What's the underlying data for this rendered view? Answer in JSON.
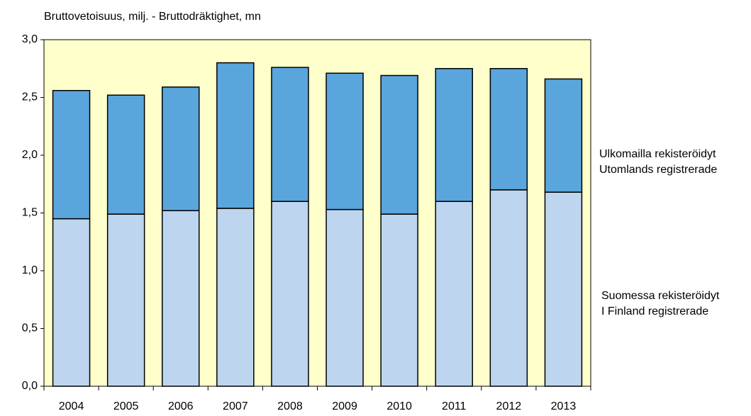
{
  "chart_data": {
    "type": "stacked_bar",
    "title": "Bruttovetoisuus, milj. - Bruttodräktighet, mn",
    "categories": [
      "2004",
      "2005",
      "2006",
      "2007",
      "2008",
      "2009",
      "2010",
      "2011",
      "2012",
      "2013"
    ],
    "series": [
      {
        "name": [
          "Suomessa rekisteröidyt",
          "I Finland registrerade"
        ],
        "color": "#bdd5ef",
        "values": [
          1.45,
          1.49,
          1.52,
          1.54,
          1.6,
          1.53,
          1.49,
          1.6,
          1.7,
          1.68
        ]
      },
      {
        "name": [
          "Ulkomailla rekisteröidyt",
          "Utomlands registrerade"
        ],
        "color": "#5aa5dc",
        "values": [
          1.11,
          1.03,
          1.07,
          1.26,
          1.16,
          1.18,
          1.2,
          1.15,
          1.05,
          0.98
        ]
      }
    ],
    "ylim": [
      0,
      3
    ],
    "yticks": [
      {
        "value": 0,
        "label": "0,0"
      },
      {
        "value": 0.5,
        "label": "0,5"
      },
      {
        "value": 1,
        "label": "1,0"
      },
      {
        "value": 1.5,
        "label": "1,5"
      },
      {
        "value": 2,
        "label": "2,0"
      },
      {
        "value": 2.5,
        "label": "2,5"
      },
      {
        "value": 3,
        "label": "3,0"
      }
    ],
    "plot_background": "#ffffcc"
  }
}
